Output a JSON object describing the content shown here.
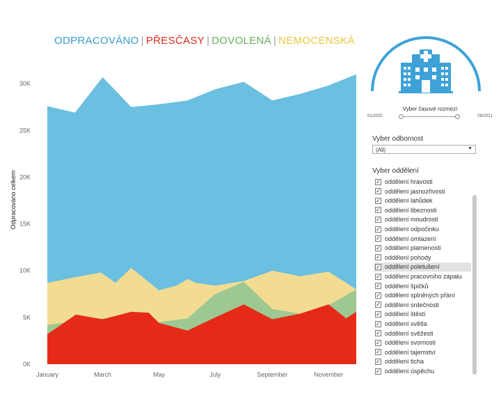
{
  "legend": {
    "items": [
      {
        "label": "ODPRACOVÁNO",
        "color": "#3a9ccf"
      },
      {
        "label": "PŘESČASY",
        "color": "#e02a1f"
      },
      {
        "label": "DOVOLENÁ",
        "color": "#6aae5c"
      },
      {
        "label": "NEMOCENSKÁ",
        "color": "#e8c93c"
      }
    ]
  },
  "chart_data": {
    "type": "area",
    "stacked": false,
    "ylabel": "Odpracováno celkem",
    "xlabel": "",
    "ylim": [
      0,
      31500
    ],
    "y_ticks": [
      0,
      5000,
      10000,
      15000,
      20000,
      25000,
      30000
    ],
    "y_tick_labels": [
      "0K",
      "5K",
      "10K",
      "15K",
      "20K",
      "25K",
      "30K"
    ],
    "x_start": "2020-01",
    "x_end": "2020-12",
    "x_ticks": [
      "2020-01",
      "2020-03",
      "2020-05",
      "2020-07",
      "2020-09",
      "2020-11"
    ],
    "x_tick_labels": [
      "January",
      "March",
      "May",
      "July",
      "September",
      "November"
    ],
    "x_months": [
      "2020-01",
      "2020-02",
      "2020-03",
      "2020-04",
      "2020-05",
      "2020-06",
      "2020-07",
      "2020-08",
      "2020-09",
      "2020-10",
      "2020-11",
      "2020-12"
    ],
    "grid": false,
    "series": [
      {
        "name": "ODPRACOVÁNO",
        "color": "#6bbfe0",
        "points": [
          [
            "2020-01-01",
            27600
          ],
          [
            "2020-01-31",
            26900
          ],
          [
            "2020-03-01",
            30700
          ],
          [
            "2020-04-01",
            27500
          ],
          [
            "2020-05-01",
            27800
          ],
          [
            "2020-06-01",
            28200
          ],
          [
            "2020-07-01",
            29400
          ],
          [
            "2020-08-01",
            30200
          ],
          [
            "2020-09-01",
            28200
          ],
          [
            "2020-10-01",
            28900
          ],
          [
            "2020-11-01",
            29800
          ],
          [
            "2020-12-01",
            31000
          ]
        ]
      },
      {
        "name": "NEMOCENSKÁ",
        "color": "#f2dc92",
        "points": [
          [
            "2020-01-01",
            8700
          ],
          [
            "2020-01-31",
            9300
          ],
          [
            "2020-02-28",
            9800
          ],
          [
            "2020-03-15",
            8700
          ],
          [
            "2020-04-01",
            10300
          ],
          [
            "2020-05-01",
            7900
          ],
          [
            "2020-05-20",
            8400
          ],
          [
            "2020-06-01",
            9100
          ],
          [
            "2020-06-10",
            8700
          ],
          [
            "2020-07-01",
            8400
          ],
          [
            "2020-08-01",
            8900
          ],
          [
            "2020-09-01",
            10000
          ],
          [
            "2020-10-01",
            9400
          ],
          [
            "2020-11-01",
            9900
          ],
          [
            "2020-12-01",
            8000
          ]
        ]
      },
      {
        "name": "DOVOLENÁ",
        "color": "#9dc892",
        "points": [
          [
            "2020-01-01",
            4200
          ],
          [
            "2020-02-01",
            4600
          ],
          [
            "2020-03-01",
            4900
          ],
          [
            "2020-03-15",
            5000
          ],
          [
            "2020-04-01",
            5600
          ],
          [
            "2020-05-01",
            4500
          ],
          [
            "2020-06-01",
            4900
          ],
          [
            "2020-07-01",
            7500
          ],
          [
            "2020-08-01",
            8800
          ],
          [
            "2020-09-01",
            5900
          ],
          [
            "2020-10-01",
            5400
          ],
          [
            "2020-11-01",
            6300
          ],
          [
            "2020-12-01",
            8000
          ]
        ]
      },
      {
        "name": "PŘESČASY",
        "color": "#e52b18",
        "points": [
          [
            "2020-01-01",
            3200
          ],
          [
            "2020-02-01",
            5300
          ],
          [
            "2020-03-01",
            4800
          ],
          [
            "2020-04-01",
            5600
          ],
          [
            "2020-04-20",
            5500
          ],
          [
            "2020-05-01",
            4400
          ],
          [
            "2020-06-01",
            3600
          ],
          [
            "2020-07-01",
            5000
          ],
          [
            "2020-08-01",
            6400
          ],
          [
            "2020-09-01",
            4800
          ],
          [
            "2020-10-01",
            5400
          ],
          [
            "2020-11-01",
            6400
          ],
          [
            "2020-11-20",
            4900
          ],
          [
            "2020-12-01",
            5600
          ]
        ]
      }
    ]
  },
  "filters": {
    "time_title": "Vyber časové rozmezí",
    "time_from": "01/2020",
    "time_to": "08/2021",
    "time_range": [
      "01/2020",
      "08/2021"
    ],
    "specialty_label": "Vyber odbornost",
    "specialty_value": "(All)",
    "department_label": "Vyber oddělení",
    "departments": [
      {
        "label": "oddělení hravosti",
        "checked": "✓"
      },
      {
        "label": "oddělení jasnozřivosti",
        "checked": "✓"
      },
      {
        "label": "oddělení lahůdek",
        "checked": "✓"
      },
      {
        "label": "oddělení libeznosti",
        "checked": "✓"
      },
      {
        "label": "oddělení moudrosti",
        "checked": "✓"
      },
      {
        "label": "oddělení odpočinku",
        "checked": "✓"
      },
      {
        "label": "oddělení omlazení",
        "checked": "✓"
      },
      {
        "label": "oddělení plamenosti",
        "checked": "✓"
      },
      {
        "label": "oddělení pohody",
        "checked": "✓"
      },
      {
        "label": "oddělení poletušení",
        "checked": "✓",
        "highlighted": true
      },
      {
        "label": "oddělení pracovního zápalu",
        "checked": "✓"
      },
      {
        "label": "oddělení špičků",
        "checked": "✓"
      },
      {
        "label": "oddělení splněných přání",
        "checked": "✓"
      },
      {
        "label": "oddělení srdečnosti",
        "checked": "✓"
      },
      {
        "label": "oddělení štěstí",
        "checked": "✓"
      },
      {
        "label": "oddělení světla",
        "checked": "✓"
      },
      {
        "label": "oddělení svěžesti",
        "checked": "✓"
      },
      {
        "label": "oddělení svornosti",
        "checked": "✓"
      },
      {
        "label": "oddělení tajemství",
        "checked": "✓"
      },
      {
        "label": "oddělení ticha",
        "checked": "✓"
      },
      {
        "label": "oddělení úspěchu",
        "checked": "✓"
      }
    ]
  },
  "logo": {
    "icon": "hospital-icon",
    "color": "#3ea2d8"
  }
}
